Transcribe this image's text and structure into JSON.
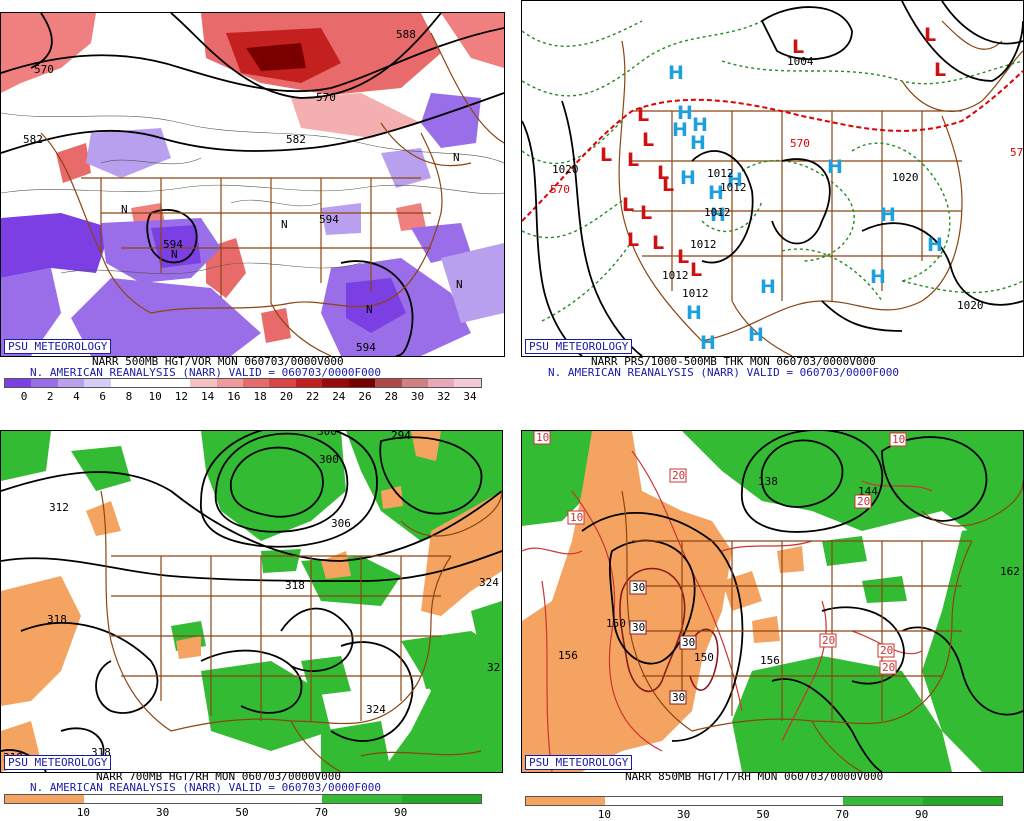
{
  "panels": [
    {
      "id": "vor500",
      "badge": "PSU METEOROLOGY",
      "caption1": "NARR 500MB HGT/VOR MON 060703/0000V000",
      "caption2": "N. AMERICAN REANALYSIS (NARR) VALID = 060703/0000F000",
      "colorbar": {
        "colors": [
          "#7b3fe4",
          "#9a6ee8",
          "#b9a0ee",
          "#d6ccf4",
          "#ffffff",
          "#ffffff",
          "#ffffff",
          "#f7c0c0",
          "#f29a9a",
          "#e86a6a",
          "#dd4444",
          "#c42020",
          "#9a0a0a",
          "#7a0000",
          "#b04a4a",
          "#d08080",
          "#e8a8b8",
          "#f4c8d8"
        ],
        "ticks": [
          "0",
          "2",
          "4",
          "6",
          "8",
          "10",
          "12",
          "14",
          "16",
          "18",
          "20",
          "22",
          "24",
          "26",
          "28",
          "30",
          "32",
          "34"
        ]
      },
      "contour_labels": [
        "570",
        "582",
        "582",
        "594",
        "570",
        "588",
        "594",
        "594"
      ]
    },
    {
      "id": "thk",
      "badge": "PSU METEOROLOGY",
      "caption1": "NARR PRS/1000-500MB THK MON 060703/0000V000",
      "caption2": "N. AMERICAN REANALYSIS (NARR) VALID = 060703/0000F000",
      "lows": [
        "L",
        "L",
        "L",
        "L",
        "L",
        "L",
        "L",
        "L",
        "L",
        "L",
        "L",
        "L",
        "L",
        "L",
        "L"
      ],
      "highs": [
        "H",
        "H",
        "H",
        "H",
        "H",
        "H",
        "H",
        "H",
        "H",
        "H",
        "H",
        "H",
        "H",
        "H",
        "H",
        "H",
        "H"
      ],
      "contour_labels": [
        "1004",
        "1012",
        "1012",
        "1012",
        "1012",
        "1012",
        "1012",
        "1020",
        "1020",
        "1020",
        "570",
        "570",
        "57"
      ]
    },
    {
      "id": "rh700",
      "badge": "PSU METEOROLOGY",
      "caption1": "NARR 700MB HGT/RH MON 060703/0000V000",
      "caption2": "N. AMERICAN REANALYSIS (NARR) VALID = 060703/0000F000",
      "colorbar": {
        "colors": [
          "#f4a460",
          "#ffffff",
          "#ffffff",
          "#ffffff",
          "#33bb33",
          "#22aa22"
        ],
        "ticks": [
          "10",
          "30",
          "50",
          "70",
          "90"
        ]
      },
      "contour_labels": [
        "312",
        "318",
        "318",
        "318",
        "318",
        "300",
        "306",
        "324",
        "324",
        "32",
        "294",
        "300"
      ]
    },
    {
      "id": "t850",
      "badge": "PSU METEOROLOGY",
      "caption1": "NARR 850MB HGT/T/RH MON 060703/0000V000",
      "caption2": "",
      "colorbar": {
        "colors": [
          "#f4a460",
          "#ffffff",
          "#ffffff",
          "#ffffff",
          "#33bb33",
          "#22aa22"
        ],
        "ticks": [
          "10",
          "30",
          "50",
          "70",
          "90"
        ]
      },
      "contour_labels": [
        "150",
        "150",
        "156",
        "156",
        "138",
        "144",
        "162"
      ],
      "temp_labels": [
        "10",
        "20",
        "10",
        "20",
        "10",
        "30",
        "30",
        "30",
        "30",
        "20",
        "20",
        "20"
      ]
    }
  ],
  "colors": {
    "border_brown": "#8b4513",
    "contour_black": "#000000",
    "dashed_green": "#228b22",
    "thickness_red": "#e00000",
    "high_cyan": "#1ea0e0",
    "low_red": "#d01010",
    "rh_green": "#33bb33",
    "rh_orange": "#f4a460",
    "temp_red": "#cc3333",
    "badge_blue": "#1a1aa8"
  }
}
